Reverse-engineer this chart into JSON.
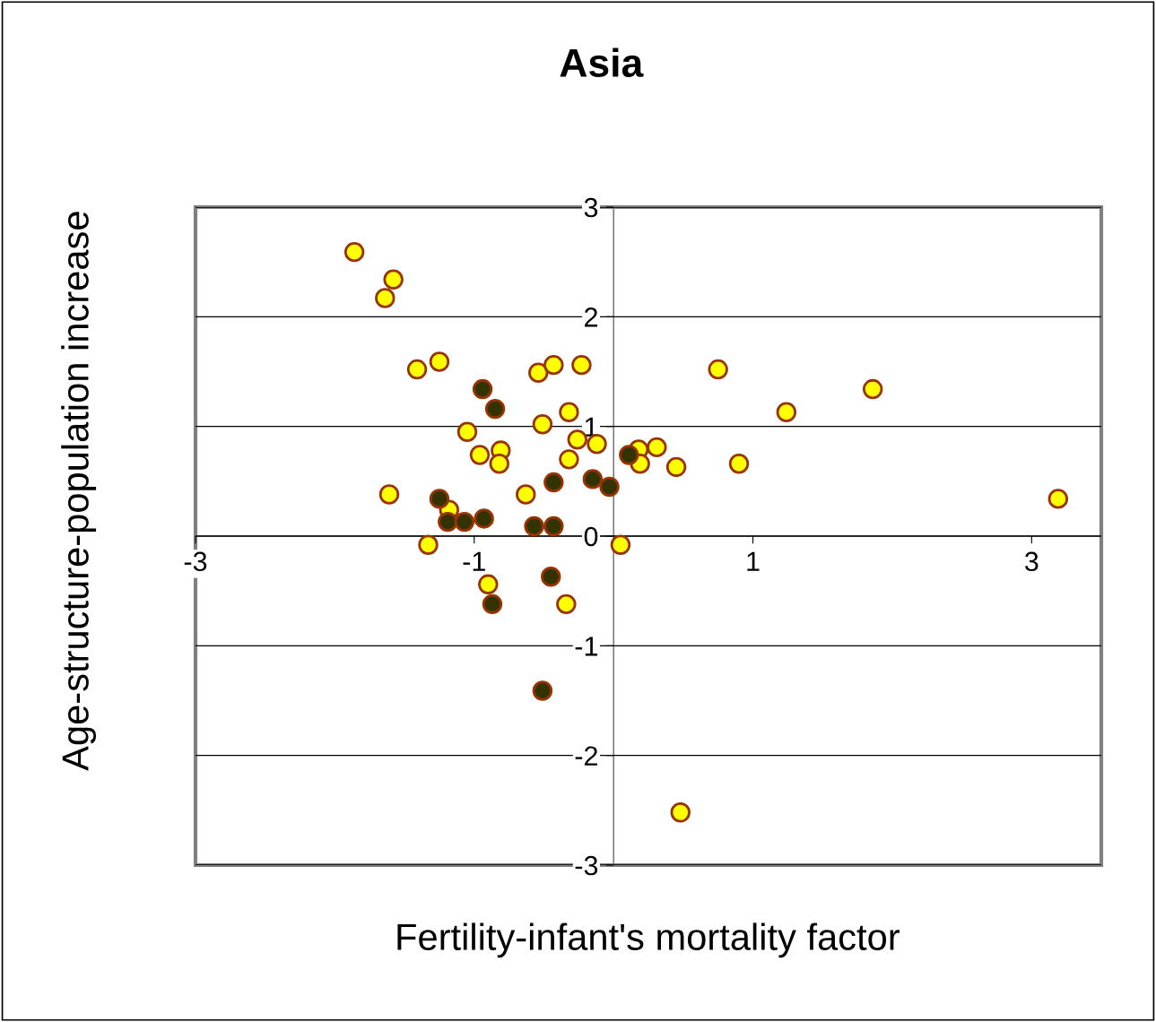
{
  "chart_data": {
    "type": "scatter",
    "title": "Asia",
    "xlabel": "Fertility-infant's mortality factor",
    "ylabel": "Age-structure-population increase",
    "xlim": [
      -3,
      3.5
    ],
    "xticks": [
      -3,
      -1,
      1,
      3
    ],
    "ylim": [
      -3,
      3
    ],
    "yticks": [
      -3,
      -2,
      -1,
      0,
      1,
      2,
      3
    ],
    "grid": "y",
    "marker": "circle",
    "legend": false,
    "series": [
      {
        "color": "#ffff00",
        "x": [
          -1.86,
          -1.58,
          -1.64,
          -1.41,
          -1.25,
          -0.54,
          -0.43,
          -0.23,
          0.75,
          1.86,
          1.24,
          -0.32,
          -0.51,
          -1.05,
          -0.26,
          -0.12,
          -0.81,
          -0.96,
          -0.82,
          -0.32,
          0.18,
          0.19,
          0.31,
          0.45,
          0.9,
          3.19,
          -1.61,
          -0.63,
          -1.18,
          -1.33,
          0.05,
          -0.9,
          -0.34,
          0.48
        ],
        "values": [
          2.59,
          2.34,
          2.17,
          1.52,
          1.59,
          1.49,
          1.56,
          1.56,
          1.52,
          1.34,
          1.13,
          1.13,
          1.02,
          0.95,
          0.88,
          0.84,
          0.78,
          0.74,
          0.66,
          0.7,
          0.79,
          0.66,
          0.81,
          0.63,
          0.66,
          0.34,
          0.38,
          0.38,
          0.24,
          -0.08,
          -0.08,
          -0.44,
          -0.62,
          -2.52
        ]
      },
      {
        "color": "#333300",
        "x": [
          -0.94,
          -0.85,
          0.11,
          -0.15,
          -0.03,
          -0.43,
          -1.25,
          -1.19,
          -1.07,
          -0.93,
          -0.57,
          -0.43,
          -0.45,
          -0.87,
          -0.51
        ],
        "values": [
          1.34,
          1.16,
          0.74,
          0.52,
          0.45,
          0.49,
          0.34,
          0.13,
          0.13,
          0.16,
          0.09,
          0.09,
          -0.37,
          -0.62,
          -1.41
        ]
      }
    ]
  }
}
